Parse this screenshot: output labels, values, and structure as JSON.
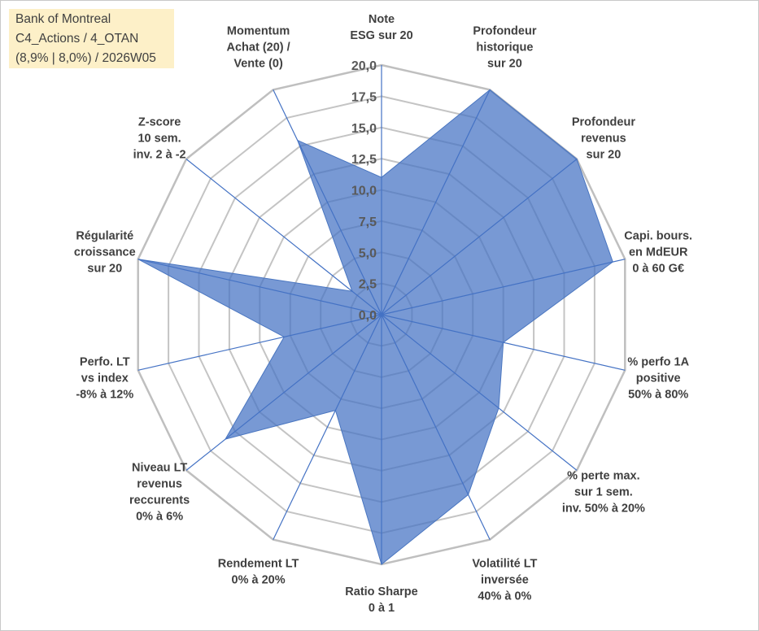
{
  "header": {
    "line1": "Bank of Montreal",
    "line2": "C4_Actions / 4_OTAN",
    "line3": "(8,9% | 8,0%) / 2026W05"
  },
  "chart_data": {
    "type": "radar",
    "title": "",
    "rmax": 20,
    "tick_labels": [
      "0,0",
      "2,5",
      "5,0",
      "7,5",
      "10,0",
      "12,5",
      "15,0",
      "17,5",
      "20,0"
    ],
    "grid": true,
    "categories": [
      [
        "Note",
        "ESG sur 20"
      ],
      [
        "Profondeur",
        "historique",
        "sur 20"
      ],
      [
        "Profondeur",
        "revenus",
        "sur 20"
      ],
      [
        "Capi. bours.",
        "en MdEUR",
        "0 à 60 G€"
      ],
      [
        "% perfo 1A",
        "positive",
        "50% à 80%"
      ],
      [
        "% perte max.",
        "sur 1 sem.",
        "inv. 50% à 20%"
      ],
      [
        "Volatilité LT",
        "inversée",
        "40% à 0%"
      ],
      [
        "Ratio Sharpe",
        "0 à 1"
      ],
      [
        "Rendement LT",
        "0% à 20%"
      ],
      [
        "Niveau LT",
        "revenus",
        "reccurents",
        "0% à 6%"
      ],
      [
        "Perfo. LT",
        "vs index",
        "-8% à 12%"
      ],
      [
        "Régularité",
        "croissance",
        "sur 20"
      ],
      [
        "Z-score",
        "10 sem.",
        "inv. 2 à -2"
      ],
      [
        "Momentum",
        "Achat (20) /",
        "Vente (0)"
      ]
    ],
    "series": [
      {
        "color": "#4472c4",
        "values": [
          11,
          20,
          20,
          19,
          10,
          12,
          16,
          20,
          8.5,
          16,
          8,
          20,
          3,
          15.5
        ]
      }
    ]
  }
}
